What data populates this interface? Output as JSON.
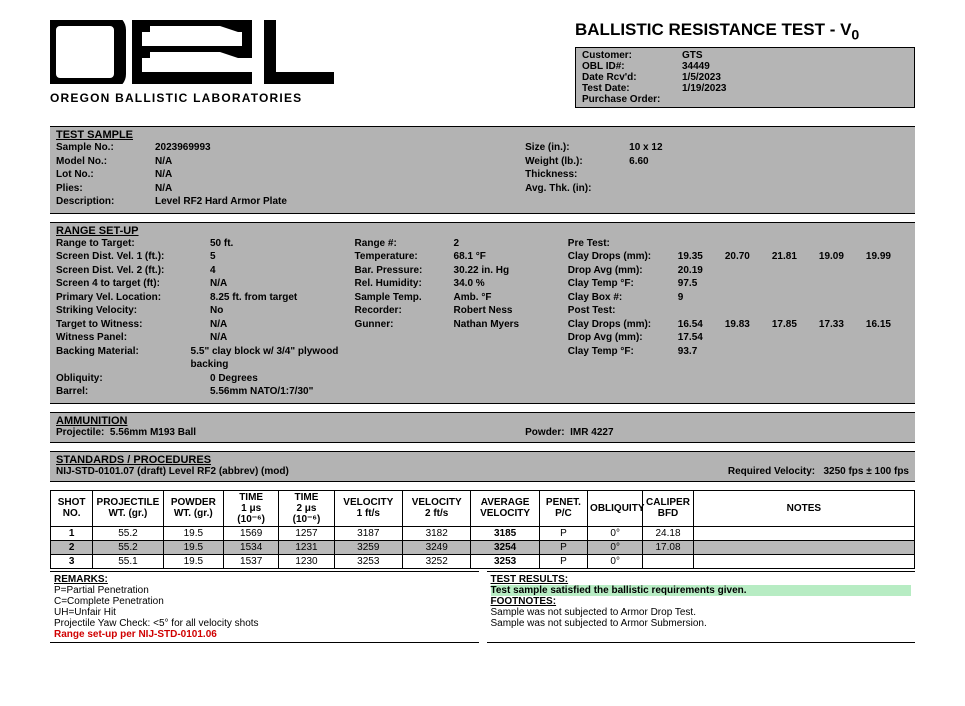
{
  "logo": {
    "sub": "OREGON BALLISTIC LABORATORIES"
  },
  "hdr_title": "BALLISTIC RESISTANCE TEST - V",
  "hdr_sub": "0",
  "customer_box": [
    [
      "Customer:",
      "GTS"
    ],
    [
      "OBL ID#:",
      "34449"
    ],
    [
      "Date Rcv'd:",
      "1/5/2023"
    ],
    [
      "Test Date:",
      "1/19/2023"
    ],
    [
      "Purchase Order:",
      ""
    ]
  ],
  "sample": {
    "title": "TEST SAMPLE",
    "left": [
      [
        "Sample No.:",
        "2023969993"
      ],
      [
        "Model No.:",
        "N/A"
      ],
      [
        "Lot No.:",
        "N/A"
      ],
      [
        "Plies:",
        "N/A"
      ],
      [
        "Description:",
        "Level RF2 Hard Armor Plate"
      ]
    ],
    "right": [
      [
        "Size (in.):",
        "10 x 12"
      ],
      [
        "Weight (lb.):",
        "6.60"
      ],
      [
        "Thickness:",
        ""
      ],
      [
        "Avg. Thk. (in):",
        ""
      ]
    ]
  },
  "range": {
    "title": "RANGE SET-UP",
    "left": [
      [
        "Range to Target:",
        "50 ft."
      ],
      [
        "Screen Dist. Vel. 1 (ft.):",
        "5"
      ],
      [
        "Screen Dist. Vel. 2 (ft.):",
        "4"
      ],
      [
        "Screen 4 to target (ft):",
        "N/A"
      ],
      [
        "Primary Vel. Location:",
        "8.25 ft. from target"
      ],
      [
        "Striking Velocity:",
        "No"
      ],
      [
        "Target to Witness:",
        "N/A"
      ],
      [
        "Witness Panel:",
        "N/A"
      ],
      [
        "Backing Material:",
        "5.5\" clay block w/ 3/4\" plywood backing"
      ],
      [
        "Obliquity:",
        "0 Degrees"
      ],
      [
        "Barrel:",
        "5.56mm NATO/1:7/30\""
      ]
    ],
    "mid": [
      [
        "Range #:",
        "2"
      ],
      [
        "Temperature:",
        "68.1  °F"
      ],
      [
        "Bar. Pressure:",
        "30.22  in. Hg"
      ],
      [
        "Rel. Humidity:",
        "34.0  %"
      ],
      [
        "Sample Temp.",
        "Amb.  °F"
      ],
      [
        "Recorder:",
        "Robert Ness"
      ],
      [
        "Gunner:",
        "Nathan Myers"
      ]
    ],
    "right_labels": [
      "Pre Test:",
      "Clay Drops (mm):",
      "Drop Avg (mm):",
      "Clay Temp °F:",
      "Clay Box #:",
      "Post Test:",
      "Clay Drops (mm):",
      "Drop Avg (mm):",
      "Clay Temp °F:"
    ],
    "pre_drops": [
      "19.35",
      "20.70",
      "21.81",
      "19.09",
      "19.99"
    ],
    "pre_avg": "20.19",
    "pre_temp": "97.5",
    "box": "9",
    "post_drops": [
      "16.54",
      "19.83",
      "17.85",
      "17.33",
      "16.15"
    ],
    "post_avg": "17.54",
    "post_temp": "93.7"
  },
  "ammo": {
    "title": "AMMUNITION",
    "proj_lbl": "Projectile:",
    "proj": "5.56mm M193 Ball",
    "pow_lbl": "Powder:",
    "pow": "IMR 4227"
  },
  "std": {
    "title": "STANDARDS / PROCEDURES",
    "text": "NIJ-STD-0101.07 (draft) Level RF2 (abbrev) (mod)",
    "rv_lbl": "Required Velocity:",
    "rv": "3250  fps  ±   100   fps"
  },
  "table": {
    "headers": [
      "SHOT NO.",
      "PROJECTILE WT. (gr.)",
      "POWDER WT. (gr.)",
      "TIME 1 μs (10⁻⁶)",
      "TIME 2 μs (10⁻⁶)",
      "VELOCITY 1 ft/s",
      "VELOCITY 2 ft/s",
      "AVERAGE VELOCITY",
      "PENET. P/C",
      "OBLIQUITY",
      "CALIPER BFD",
      "NOTES"
    ],
    "rows": [
      [
        "1",
        "55.2",
        "19.5",
        "1569",
        "1257",
        "3187",
        "3182",
        "3185",
        "P",
        "0°",
        "24.18",
        ""
      ],
      [
        "2",
        "55.2",
        "19.5",
        "1534",
        "1231",
        "3259",
        "3249",
        "3254",
        "P",
        "0°",
        "17.08",
        ""
      ],
      [
        "3",
        "55.1",
        "19.5",
        "1537",
        "1230",
        "3253",
        "3252",
        "3253",
        "P",
        "0°",
        "",
        ""
      ]
    ],
    "col_widths": [
      "42",
      "70",
      "60",
      "55",
      "55",
      "68",
      "68",
      "68",
      "48",
      "55",
      "50",
      "220"
    ]
  },
  "remarks": {
    "title": "REMARKS:",
    "lines": [
      "P=Partial Penetration",
      "C=Complete Penetration",
      "UH=Unfair Hit",
      "Projectile Yaw Check: <5° for all velocity shots"
    ],
    "red": "Range set-up per NIJ-STD-0101.06"
  },
  "results": {
    "title": "TEST RESULTS:",
    "pass": "Test sample satisfied the ballistic requirements given.",
    "foot_title": "FOOTNOTES:",
    "foot": [
      "Sample was not subjected to Armor Drop Test.",
      "Sample was not subjected to Armor Submersion."
    ]
  }
}
